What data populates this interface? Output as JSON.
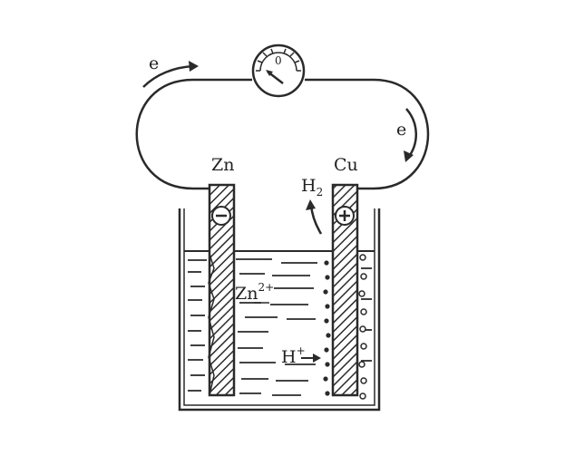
{
  "diagram": {
    "electron_top": "e",
    "electron_right": "e",
    "anode": {
      "label": "Zn",
      "sign": "−"
    },
    "cathode": {
      "label": "Cu",
      "sign": "+"
    },
    "gas": {
      "base": "H",
      "sub": "2"
    },
    "zinc_ion": {
      "base": "Zn",
      "sup": "2+"
    },
    "proton": {
      "base": "H",
      "sup": "+"
    },
    "meter_zero": "0"
  },
  "colors": {
    "ink": "#2a2a2a",
    "background": "#ffffff"
  }
}
